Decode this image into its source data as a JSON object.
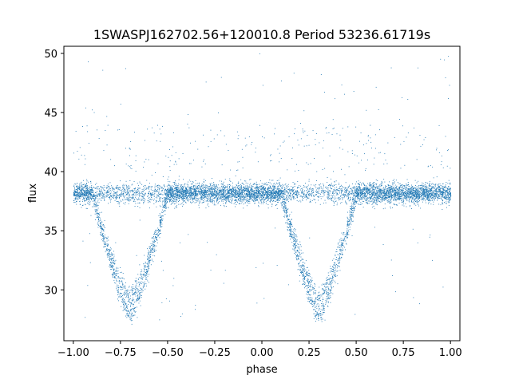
{
  "chart_data": {
    "type": "scatter",
    "title": "1SWASPJ162702.56+120010.8 Period 53236.61719s",
    "xlabel": "phase",
    "ylabel": "flux",
    "xlim": [
      -1.05,
      1.05
    ],
    "ylim": [
      25.7,
      50.6
    ],
    "xticks": [
      -1.0,
      -0.75,
      -0.5,
      -0.25,
      0.0,
      0.25,
      0.5,
      0.75,
      1.0
    ],
    "xtick_labels": [
      "−1.00",
      "−0.75",
      "−0.50",
      "−0.25",
      "0.00",
      "0.25",
      "0.50",
      "0.75",
      "1.00"
    ],
    "yticks": [
      30,
      35,
      40,
      45,
      50
    ],
    "ytick_labels": [
      "30",
      "35",
      "40",
      "45",
      "50"
    ],
    "grid": false,
    "marker_color": "#1f77b4",
    "series": [
      {
        "baseline_flux": 38.2,
        "baseline_spread": 0.7,
        "primary_eclipse": {
          "center_phase": -0.7,
          "min_flux": 27.9,
          "second_branch_min_flux": 29.3
        },
        "secondary_eclipse": {
          "center_phase": 0.3,
          "min_flux": 27.9,
          "second_branch_min_flux": 29.3
        },
        "eclipse_half_width_phase": 0.2,
        "outlier_flux_range": [
          27.0,
          50.0
        ],
        "phase_range": [
          -1.0,
          1.0
        ]
      }
    ]
  }
}
